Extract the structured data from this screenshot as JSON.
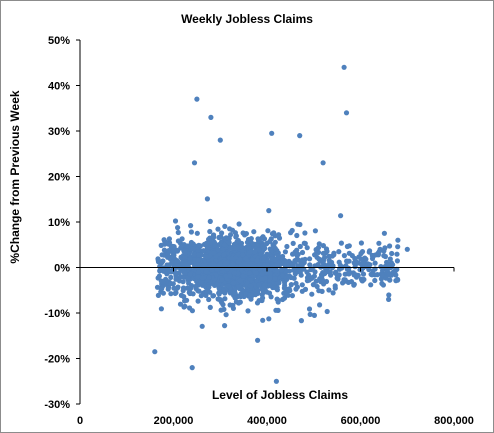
{
  "chart_data": {
    "type": "scatter",
    "title": "Weekly Jobless Claims",
    "xlabel": "Level of Jobless Claims",
    "ylabel": "%Change from Previous Week",
    "xlim": [
      0,
      800000
    ],
    "ylim": [
      -30,
      50
    ],
    "x_ticks": [
      0,
      200000,
      400000,
      600000,
      800000
    ],
    "x_tick_labels": [
      "0",
      "200,000",
      "400,000",
      "600,000",
      "800,000"
    ],
    "y_ticks": [
      -30,
      -20,
      -10,
      0,
      10,
      20,
      30,
      40,
      50
    ],
    "y_tick_labels": [
      "-30%",
      "-20%",
      "-10%",
      "0%",
      "10%",
      "20%",
      "30%",
      "40%",
      "50%"
    ],
    "grid": false,
    "series_color": "#4f81bd",
    "notable_points": [
      {
        "x": 565000,
        "y": 44
      },
      {
        "x": 250000,
        "y": 37
      },
      {
        "x": 570000,
        "y": 34
      },
      {
        "x": 280000,
        "y": 33
      },
      {
        "x": 300000,
        "y": 28
      },
      {
        "x": 410000,
        "y": 29.5
      },
      {
        "x": 470000,
        "y": 29
      },
      {
        "x": 520000,
        "y": 23
      },
      {
        "x": 245000,
        "y": 23
      },
      {
        "x": 160000,
        "y": -18.5
      },
      {
        "x": 240000,
        "y": -22
      },
      {
        "x": 420000,
        "y": -25
      },
      {
        "x": 380000,
        "y": -16
      },
      {
        "x": 680000,
        "y": 6
      },
      {
        "x": 700000,
        "y": 4
      }
    ]
  }
}
